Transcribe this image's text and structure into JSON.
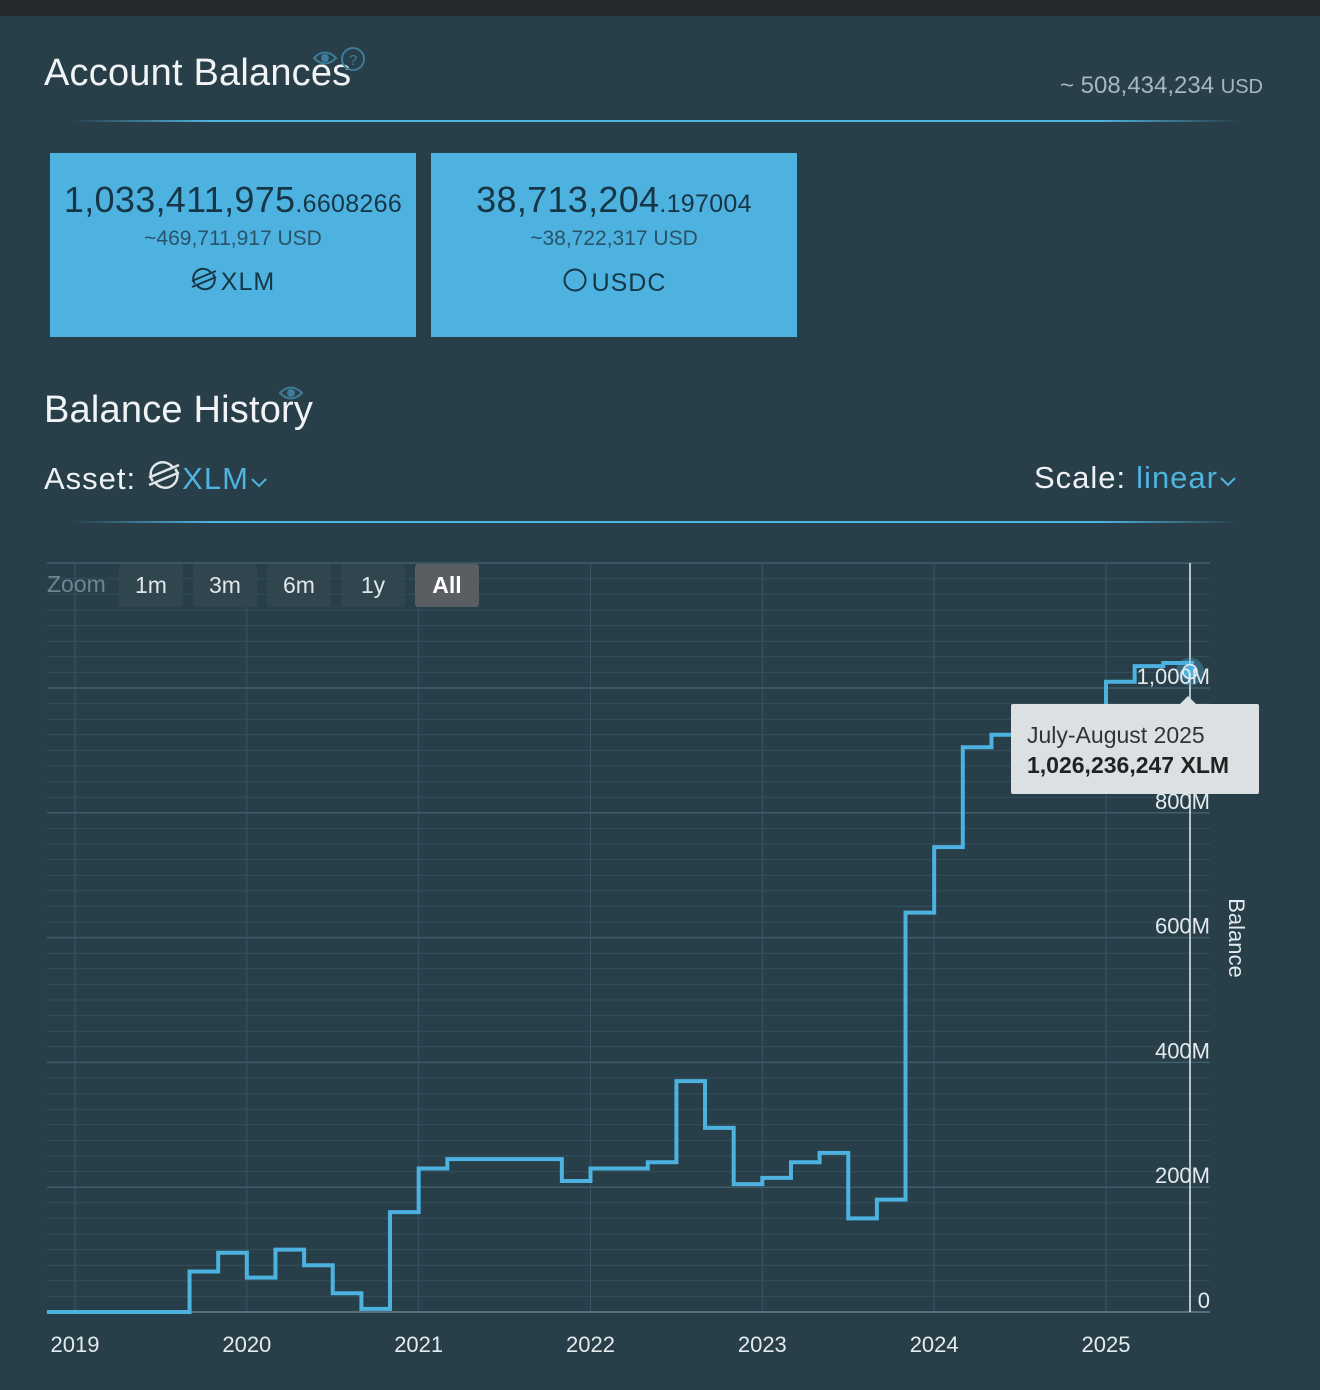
{
  "balances_section": {
    "title": "Account Balances",
    "total_value": "~ 508,434,234",
    "total_currency": "USD",
    "cards": [
      {
        "amount_int": "1,033,411,975",
        "amount_dec": ".6608266",
        "usd": "~469,711,917 USD",
        "asset": "XLM",
        "icon": "stellar-icon"
      },
      {
        "amount_int": "38,713,204",
        "amount_dec": ".197004",
        "usd": "~38,722,317 USD",
        "asset": "USDC",
        "icon": "circle-icon"
      }
    ]
  },
  "history_section": {
    "title": "Balance History",
    "asset_label": "Asset:",
    "asset_value": "XLM",
    "scale_label": "Scale:",
    "scale_value": "linear"
  },
  "zoom": {
    "label": "Zoom",
    "buttons": [
      "1m",
      "3m",
      "6m",
      "1y",
      "All"
    ],
    "active": "All"
  },
  "tooltip": {
    "period": "July-August 2025",
    "value": "1,026,236,247 XLM"
  },
  "colors": {
    "accent": "#4fb3e0",
    "background": "#283e48",
    "card": "#4db2e0"
  },
  "chart_data": {
    "type": "line",
    "step": true,
    "ylabel": "Balance",
    "yticks": [
      "0",
      "200M",
      "400M",
      "600M",
      "800M",
      "1,000M"
    ],
    "ylim": [
      0,
      1000000000
    ],
    "xticks": [
      "2019",
      "2020",
      "2021",
      "2022",
      "2023",
      "2024",
      "2025"
    ],
    "xlim": [
      "2019-01",
      "2025-07"
    ],
    "grid": true,
    "series": [
      {
        "values": [
          {
            "x": "2018-12",
            "y": 0
          },
          {
            "x": "2019-09",
            "y": 65000000
          },
          {
            "x": "2019-11",
            "y": 95000000
          },
          {
            "x": "2020-01",
            "y": 55000000
          },
          {
            "x": "2020-03",
            "y": 100000000
          },
          {
            "x": "2020-05",
            "y": 75000000
          },
          {
            "x": "2020-07",
            "y": 30000000
          },
          {
            "x": "2020-09",
            "y": 5000000
          },
          {
            "x": "2020-11",
            "y": 160000000
          },
          {
            "x": "2021-01",
            "y": 230000000
          },
          {
            "x": "2021-03",
            "y": 245000000
          },
          {
            "x": "2021-11",
            "y": 210000000
          },
          {
            "x": "2022-01",
            "y": 230000000
          },
          {
            "x": "2022-05",
            "y": 240000000
          },
          {
            "x": "2022-07",
            "y": 370000000
          },
          {
            "x": "2022-09",
            "y": 295000000
          },
          {
            "x": "2022-11",
            "y": 205000000
          },
          {
            "x": "2023-01",
            "y": 215000000
          },
          {
            "x": "2023-03",
            "y": 240000000
          },
          {
            "x": "2023-05",
            "y": 255000000
          },
          {
            "x": "2023-07",
            "y": 150000000
          },
          {
            "x": "2023-09",
            "y": 180000000
          },
          {
            "x": "2023-11",
            "y": 640000000
          },
          {
            "x": "2024-01",
            "y": 745000000
          },
          {
            "x": "2024-03",
            "y": 905000000
          },
          {
            "x": "2024-05",
            "y": 925000000
          },
          {
            "x": "2024-07",
            "y": 880000000
          },
          {
            "x": "2024-09",
            "y": 890000000
          },
          {
            "x": "2024-11",
            "y": 965000000
          },
          {
            "x": "2025-01",
            "y": 1010000000
          },
          {
            "x": "2025-03",
            "y": 1035000000
          },
          {
            "x": "2025-05",
            "y": 1040000000
          },
          {
            "x": "2025-07",
            "y": 1026236247
          }
        ]
      }
    ]
  }
}
